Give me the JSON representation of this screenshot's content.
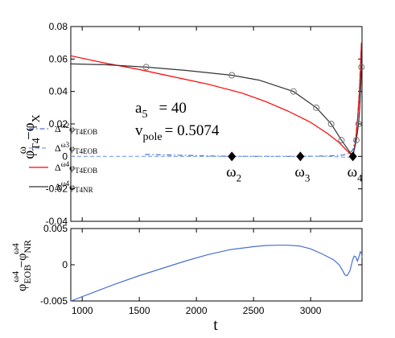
{
  "chart_data": [
    {
      "type": "line",
      "panel": "top",
      "xlim": [
        900,
        3450
      ],
      "ylim": [
        -0.04,
        0.08
      ],
      "yticks": [
        -0.04,
        -0.02,
        0,
        0.02,
        0.04,
        0.06,
        0.08
      ],
      "ytick_labels": [
        "-0.04",
        "-0.02",
        "0",
        "0.02",
        "0.04",
        "0.06",
        "0.08"
      ],
      "ylabel": {
        "base": "φ",
        "sup": "ω",
        "sub": "T4",
        "rest_base": "−φ",
        "rest_sub": "X"
      },
      "annotations": {
        "a5_label": "a",
        "a5_sub": "5",
        "a5_value": "= 40",
        "vpole_label": "v",
        "vpole_sub": "pole",
        "vpole_value": "= 0.5074"
      },
      "markers": [
        {
          "label": "ω",
          "sub": "2",
          "x": 2310,
          "y": 0.0
        },
        {
          "label": "ω",
          "sub": "3",
          "x": 2910,
          "y": 0.0
        },
        {
          "label": "ω",
          "sub": "4",
          "x": 3370,
          "y": 0.0
        }
      ],
      "legend_position": "left",
      "series": [
        {
          "legend": {
            "pre": "Δ",
            "sup": "ω2",
            "mid": "φ",
            "sub": "T4EOB"
          },
          "color": "#4a6fd1",
          "style": "dashdot",
          "points": [
            [
              1550,
              0.0012
            ],
            [
              1800,
              0.0008
            ],
            [
              2050,
              0.0004
            ],
            [
              2310,
              0.0
            ],
            [
              2500,
              0.0
            ],
            [
              2700,
              0.0
            ],
            [
              2910,
              0.0
            ],
            [
              3100,
              0.0002
            ],
            [
              3200,
              0.0004
            ],
            [
              3280,
              0.0008
            ],
            [
              3340,
              0.002
            ],
            [
              3370,
              0.004
            ],
            [
              3395,
              0.012
            ],
            [
              3410,
              0.022
            ],
            [
              3425,
              0.038
            ],
            [
              3435,
              0.055
            ],
            [
              3445,
              0.07
            ]
          ]
        },
        {
          "legend": {
            "pre": "Δ",
            "sup": "ω3",
            "mid": "φ",
            "sub": "T4EOB"
          },
          "color": "#7aa0e6",
          "style": "dashed",
          "points": [
            [
              900,
              0.0
            ],
            [
              1500,
              0.0
            ],
            [
              2100,
              0.0
            ],
            [
              2500,
              0.0
            ],
            [
              2910,
              0.0
            ],
            [
              3150,
              0.0
            ],
            [
              3300,
              -0.0005
            ],
            [
              3340,
              -0.0005
            ],
            [
              3370,
              0.0
            ],
            [
              3395,
              0.01
            ],
            [
              3410,
              0.02
            ],
            [
              3425,
              0.035
            ],
            [
              3435,
              0.05
            ],
            [
              3445,
              0.065
            ]
          ]
        },
        {
          "legend": {
            "pre": "Δ",
            "sup": "ω4",
            "mid": "φ",
            "sub": "T4EOB"
          },
          "color": "#ff0000",
          "style": "solid",
          "points": [
            [
              900,
              0.062
            ],
            [
              1200,
              0.0575
            ],
            [
              1500,
              0.0535
            ],
            [
              1800,
              0.049
            ],
            [
              2100,
              0.0445
            ],
            [
              2400,
              0.039
            ],
            [
              2600,
              0.034
            ],
            [
              2800,
              0.028
            ],
            [
              3000,
              0.021
            ],
            [
              3150,
              0.014
            ],
            [
              3250,
              0.0085
            ],
            [
              3320,
              0.0035
            ],
            [
              3370,
              0.0
            ],
            [
              3395,
              0.01
            ],
            [
              3410,
              0.022
            ],
            [
              3425,
              0.038
            ],
            [
              3435,
              0.052
            ],
            [
              3445,
              0.07
            ]
          ]
        },
        {
          "legend": {
            "pre": "Δ",
            "sup": "ω4",
            "mid": "φ",
            "sub": "T4NR"
          },
          "color": "#333333",
          "style": "solid",
          "points": [
            [
              900,
              0.057
            ],
            [
              1200,
              0.0565
            ],
            [
              1560,
              0.055
            ],
            [
              1900,
              0.053
            ],
            [
              2310,
              0.05
            ],
            [
              2550,
              0.047
            ],
            [
              2850,
              0.04
            ],
            [
              3050,
              0.03
            ],
            [
              3180,
              0.02
            ],
            [
              3270,
              0.01
            ],
            [
              3330,
              0.004
            ],
            [
              3370,
              0.0
            ],
            [
              3400,
              0.01
            ],
            [
              3420,
              0.02
            ],
            [
              3430,
              0.03
            ],
            [
              3440,
              0.045
            ],
            [
              3445,
              0.055
            ],
            [
              3448,
              0.07
            ]
          ],
          "circle_markers": [
            [
              1560,
              0.055
            ],
            [
              2310,
              0.05
            ],
            [
              2850,
              0.04
            ],
            [
              3050,
              0.03
            ],
            [
              3180,
              0.02
            ],
            [
              3270,
              0.01
            ],
            [
              3400,
              0.01
            ],
            [
              3420,
              0.02
            ],
            [
              3445,
              0.055
            ]
          ]
        }
      ]
    },
    {
      "type": "line",
      "panel": "bottom",
      "xlim": [
        900,
        3450
      ],
      "ylim": [
        -0.005,
        0.005
      ],
      "xticks": [
        1000,
        1500,
        2000,
        2500,
        3000
      ],
      "xtick_labels": [
        "1000",
        "1500",
        "2000",
        "2500",
        "3000"
      ],
      "yticks": [
        -0.005,
        0,
        0.005
      ],
      "ytick_labels": [
        "-0.005",
        "0",
        "0.005"
      ],
      "xlabel": "t",
      "ylabel": {
        "base": "φ",
        "sup": "ω4",
        "sub": "EOB",
        "rest_base": "−φ",
        "rest_sup": "ω4",
        "rest_sub": "NR"
      },
      "series": [
        {
          "color": "#4a6fd1",
          "style": "solid",
          "points": [
            [
              900,
              -0.005
            ],
            [
              1100,
              -0.0038
            ],
            [
              1300,
              -0.0026
            ],
            [
              1500,
              -0.0015
            ],
            [
              1700,
              -0.0005
            ],
            [
              1900,
              0.0005
            ],
            [
              2100,
              0.0014
            ],
            [
              2300,
              0.0021
            ],
            [
              2500,
              0.0025
            ],
            [
              2600,
              0.00265
            ],
            [
              2700,
              0.0027
            ],
            [
              2800,
              0.0027
            ],
            [
              2900,
              0.0026
            ],
            [
              3000,
              0.0022
            ],
            [
              3100,
              0.0015
            ],
            [
              3200,
              0.0007
            ],
            [
              3250,
              0.0
            ],
            [
              3280,
              -0.0008
            ],
            [
              3300,
              -0.0014
            ],
            [
              3320,
              -0.0015
            ],
            [
              3345,
              -0.0008
            ],
            [
              3365,
              0.0005
            ],
            [
              3380,
              0.0012
            ],
            [
              3395,
              0.0011
            ],
            [
              3410,
              0.0005
            ],
            [
              3425,
              0.0012
            ],
            [
              3435,
              0.0018
            ],
            [
              3445,
              0.0016
            ],
            [
              3450,
              0.001
            ]
          ]
        }
      ]
    }
  ]
}
